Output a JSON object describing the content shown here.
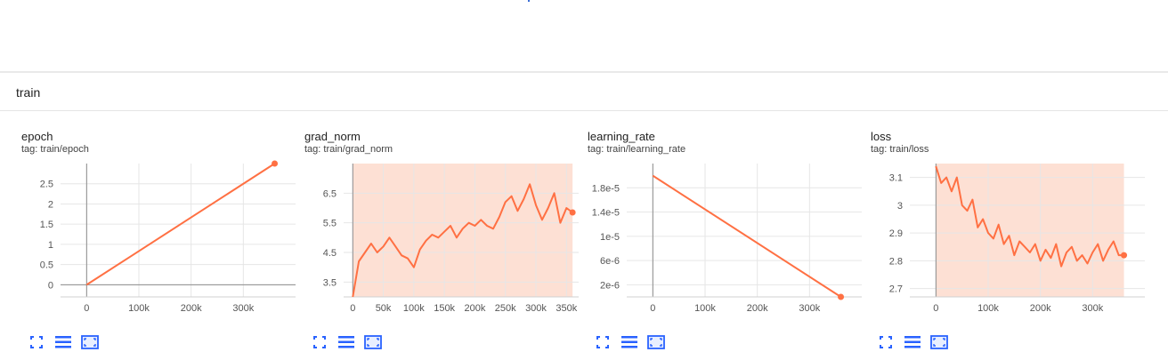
{
  "section": {
    "title": "train"
  },
  "colors": {
    "series": "#ff7043",
    "band": "#fde0d4",
    "grid": "#e6e6e6",
    "axis": "#8c8c8c"
  },
  "toolbar_icons": [
    "fit-domain-icon",
    "toggle-legend-icon",
    "fullscreen-icon"
  ],
  "charts": [
    {
      "title": "epoch",
      "tag": "tag: train/epoch",
      "chart_data": {
        "type": "line",
        "xlabel": "",
        "ylabel": "",
        "xlim": [
          -50000,
          400000
        ],
        "ylim": [
          -0.3,
          3.0
        ],
        "x_ticks": [
          0,
          100000,
          200000,
          300000
        ],
        "x_tick_labels": [
          "0",
          "100k",
          "200k",
          "300k"
        ],
        "y_ticks": [
          0,
          0.5,
          1,
          1.5,
          2,
          2.5
        ],
        "y_tick_labels": [
          "0",
          "0.5",
          "1",
          "1.5",
          "2",
          "2.5"
        ],
        "grid": true,
        "series": [
          {
            "x": [
              0,
              90000,
              180000,
              270000,
              360000
            ],
            "y": [
              0,
              0.75,
              1.5,
              2.25,
              3.0
            ]
          }
        ]
      }
    },
    {
      "title": "grad_norm",
      "tag": "tag: train/grad_norm",
      "chart_data": {
        "type": "line",
        "xlabel": "",
        "ylabel": "",
        "xlim": [
          -15000,
          370000
        ],
        "ylim": [
          3.0,
          7.5
        ],
        "x_ticks": [
          0,
          50000,
          100000,
          150000,
          200000,
          250000,
          300000,
          350000
        ],
        "x_tick_labels": [
          "0",
          "50k",
          "100k",
          "150k",
          "200k",
          "250k",
          "300k",
          "350k"
        ],
        "y_ticks": [
          3.5,
          4.5,
          5.5,
          6.5
        ],
        "y_tick_labels": [
          "3.5",
          "4.5",
          "5.5",
          "6.5"
        ],
        "grid": true,
        "band": {
          "x": [
            0,
            360000
          ],
          "y": [
            3.0,
            7.5
          ]
        },
        "series": [
          {
            "x": [
              0,
              10000,
              20000,
              30000,
              40000,
              50000,
              60000,
              70000,
              80000,
              90000,
              100000,
              110000,
              120000,
              130000,
              140000,
              150000,
              160000,
              170000,
              180000,
              190000,
              200000,
              210000,
              220000,
              230000,
              240000,
              250000,
              260000,
              270000,
              280000,
              290000,
              300000,
              310000,
              320000,
              330000,
              340000,
              350000,
              360000
            ],
            "y": [
              3.0,
              4.2,
              4.5,
              4.8,
              4.5,
              4.7,
              5.0,
              4.7,
              4.4,
              4.3,
              4.0,
              4.6,
              4.9,
              5.1,
              5.0,
              5.2,
              5.4,
              5.0,
              5.3,
              5.5,
              5.4,
              5.6,
              5.4,
              5.3,
              5.7,
              6.2,
              6.4,
              5.9,
              6.3,
              6.8,
              6.1,
              5.6,
              6.0,
              6.5,
              5.5,
              6.0,
              5.85
            ]
          }
        ]
      }
    },
    {
      "title": "learning_rate",
      "tag": "tag: train/learning_rate",
      "chart_data": {
        "type": "line",
        "xlabel": "",
        "ylabel": "",
        "xlim": [
          -50000,
          400000
        ],
        "ylim": [
          0,
          2.2e-05
        ],
        "x_ticks": [
          0,
          100000,
          200000,
          300000
        ],
        "x_tick_labels": [
          "0",
          "100k",
          "200k",
          "300k"
        ],
        "y_ticks": [
          2e-06,
          6e-06,
          1e-05,
          1.4e-05,
          1.8e-05
        ],
        "y_tick_labels": [
          "2e-6",
          "6e-6",
          "1e-5",
          "1.4e-5",
          "1.8e-5"
        ],
        "grid": true,
        "series": [
          {
            "x": [
              0,
              360000
            ],
            "y": [
              2e-05,
              0
            ]
          }
        ]
      }
    },
    {
      "title": "loss",
      "tag": "tag: train/loss",
      "chart_data": {
        "type": "line",
        "xlabel": "",
        "ylabel": "",
        "xlim": [
          -50000,
          400000
        ],
        "ylim": [
          2.67,
          3.15
        ],
        "x_ticks": [
          0,
          100000,
          200000,
          300000
        ],
        "x_tick_labels": [
          "0",
          "100k",
          "200k",
          "300k"
        ],
        "y_ticks": [
          2.7,
          2.8,
          2.9,
          3.0,
          3.1
        ],
        "y_tick_labels": [
          "2.7",
          "2.8",
          "2.9",
          "3",
          "3.1"
        ],
        "grid": true,
        "band": {
          "x": [
            0,
            360000
          ],
          "y": [
            2.67,
            3.15
          ]
        },
        "series": [
          {
            "x": [
              0,
              10000,
              20000,
              30000,
              40000,
              50000,
              60000,
              70000,
              80000,
              90000,
              100000,
              110000,
              120000,
              130000,
              140000,
              150000,
              160000,
              170000,
              180000,
              190000,
              200000,
              210000,
              220000,
              230000,
              240000,
              250000,
              260000,
              270000,
              280000,
              290000,
              300000,
              310000,
              320000,
              330000,
              340000,
              350000,
              360000
            ],
            "y": [
              3.14,
              3.08,
              3.1,
              3.05,
              3.1,
              3.0,
              2.98,
              3.02,
              2.92,
              2.95,
              2.9,
              2.88,
              2.93,
              2.86,
              2.89,
              2.82,
              2.87,
              2.85,
              2.83,
              2.86,
              2.8,
              2.84,
              2.81,
              2.86,
              2.78,
              2.83,
              2.85,
              2.8,
              2.82,
              2.79,
              2.83,
              2.86,
              2.8,
              2.84,
              2.87,
              2.82,
              2.82
            ]
          }
        ]
      }
    }
  ]
}
